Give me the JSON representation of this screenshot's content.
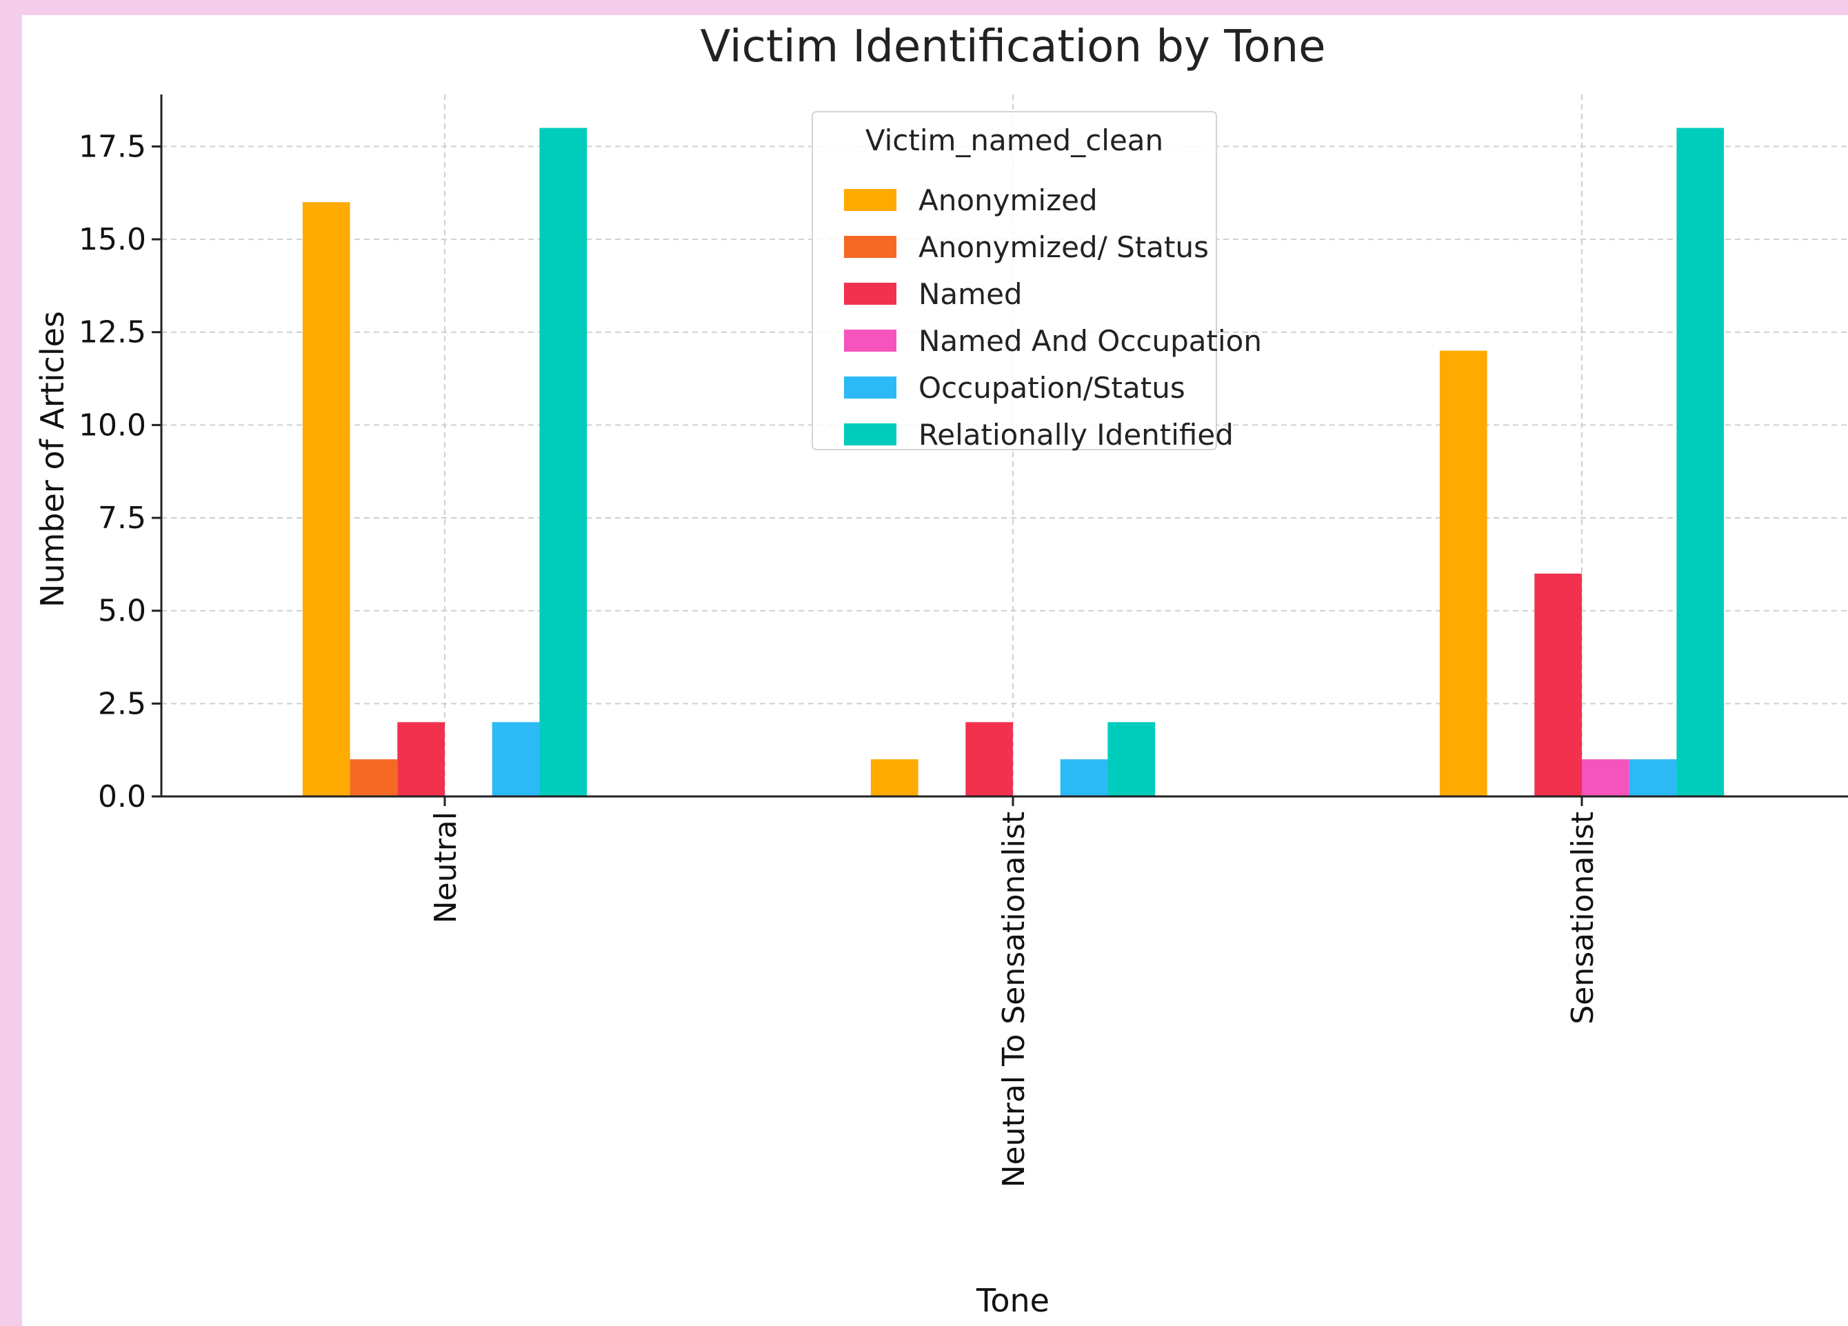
{
  "chart_data": {
    "type": "bar",
    "title": "Victim Identification by Tone",
    "xlabel": "Tone",
    "ylabel": "Number of Articles",
    "categories": [
      "Neutral",
      "Neutral To Sensationalist",
      "Sensationalist"
    ],
    "ylim": [
      0,
      18.9
    ],
    "yticks": [
      0.0,
      2.5,
      5.0,
      7.5,
      10.0,
      12.5,
      15.0,
      17.5
    ],
    "ytick_labels": [
      "0.0",
      "2.5",
      "5.0",
      "7.5",
      "10.0",
      "12.5",
      "15.0",
      "17.5"
    ],
    "grid": true,
    "legend": {
      "title": "Victim_named_clean",
      "position": "top-center"
    },
    "series": [
      {
        "name": "Anonymized",
        "color": "#FFAA00",
        "values": [
          16,
          1,
          12
        ]
      },
      {
        "name": "Anonymized/ Status",
        "color": "#F46A25",
        "values": [
          1,
          0,
          0
        ]
      },
      {
        "name": "Named",
        "color": "#F2314F",
        "values": [
          2,
          2,
          6
        ]
      },
      {
        "name": "Named And Occupation",
        "color": "#F654BD",
        "values": [
          0,
          0,
          1
        ]
      },
      {
        "name": "Occupation/Status",
        "color": "#2BBAF6",
        "values": [
          2,
          1,
          1
        ]
      },
      {
        "name": "Relationally Identified",
        "color": "#00CCBB",
        "values": [
          18,
          2,
          18
        ]
      }
    ]
  }
}
